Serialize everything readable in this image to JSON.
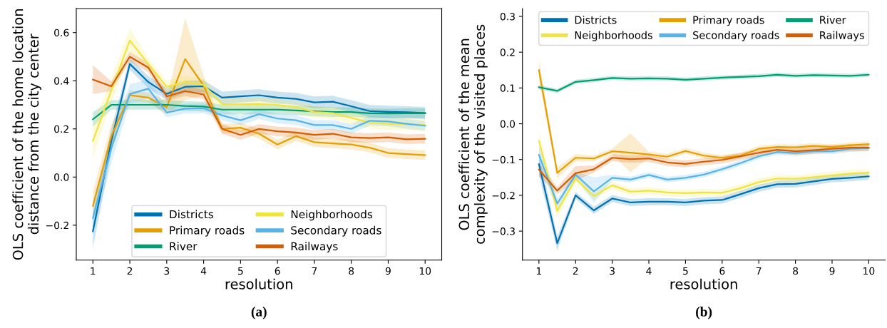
{
  "chart_data": [
    {
      "type": "line",
      "ylabel": "OLS coefficient of the home location\ndistance from the city center",
      "xlabel": "resolution",
      "annotations": [
        "(a)"
      ],
      "x": [
        1,
        1.5,
        2,
        2.5,
        3,
        3.5,
        4,
        4.5,
        5,
        5.5,
        6,
        6.5,
        7,
        7.5,
        8,
        8.5,
        9,
        9.5,
        10
      ],
      "xlim": [
        0.55,
        10.45
      ],
      "xticks": [
        1,
        2,
        3,
        4,
        5,
        6,
        7,
        8,
        9,
        10
      ],
      "ylim": [
        -0.345,
        0.7
      ],
      "yticks": [
        {
          "value": -0.2,
          "label": "−0.2"
        },
        {
          "value": 0,
          "label": "0.0"
        },
        {
          "value": 0.2,
          "label": "0.2"
        },
        {
          "value": 0.4,
          "label": "0.4"
        },
        {
          "value": 0.6,
          "label": "0.6"
        }
      ],
      "legend": "bottom",
      "grid": false,
      "marker": "none",
      "line_style": "solid",
      "series": [
        {
          "name": "Districts",
          "color": "#0072b2",
          "values": [
            -0.225,
            0.15,
            0.47,
            0.395,
            0.345,
            0.375,
            0.377,
            0.33,
            0.335,
            0.34,
            0.33,
            0.325,
            0.31,
            0.313,
            0.294,
            0.274,
            0.271,
            0.269,
            0.266
          ],
          "lower": [
            -0.295,
            0.1,
            0.445,
            0.37,
            0.32,
            0.35,
            0.352,
            0.305,
            0.31,
            0.315,
            0.305,
            0.3,
            0.285,
            0.288,
            0.269,
            0.249,
            0.246,
            0.244,
            0.241
          ],
          "upper": [
            -0.155,
            0.2,
            0.495,
            0.42,
            0.37,
            0.4,
            0.402,
            0.355,
            0.36,
            0.365,
            0.355,
            0.35,
            0.335,
            0.338,
            0.319,
            0.299,
            0.296,
            0.294,
            0.291
          ]
        },
        {
          "name": "Primary roads",
          "color": "#e69f00",
          "values": [
            -0.12,
            0.17,
            0.34,
            0.33,
            0.29,
            0.49,
            0.38,
            0.2,
            0.205,
            0.18,
            0.135,
            0.17,
            0.145,
            0.14,
            0.135,
            0.122,
            0.1,
            0.095,
            0.091
          ],
          "lower": [
            -0.18,
            0.12,
            0.32,
            0.31,
            0.26,
            0.32,
            0.34,
            0.18,
            0.185,
            0.16,
            0.115,
            0.15,
            0.125,
            0.12,
            0.115,
            0.102,
            0.08,
            0.075,
            0.071
          ],
          "upper": [
            -0.06,
            0.22,
            0.36,
            0.35,
            0.32,
            0.66,
            0.42,
            0.22,
            0.225,
            0.2,
            0.155,
            0.19,
            0.165,
            0.16,
            0.155,
            0.142,
            0.12,
            0.115,
            0.111
          ]
        },
        {
          "name": "River",
          "color": "#009e73",
          "values": [
            0.24,
            0.3,
            0.3,
            0.3,
            0.3,
            0.295,
            0.293,
            0.28,
            0.28,
            0.28,
            0.28,
            0.277,
            0.273,
            0.27,
            0.27,
            0.265,
            0.264,
            0.265,
            0.265
          ],
          "lower": [
            0.21,
            0.28,
            0.28,
            0.28,
            0.28,
            0.275,
            0.273,
            0.26,
            0.26,
            0.26,
            0.26,
            0.257,
            0.253,
            0.25,
            0.25,
            0.245,
            0.244,
            0.245,
            0.245
          ],
          "upper": [
            0.27,
            0.32,
            0.32,
            0.32,
            0.32,
            0.315,
            0.313,
            0.3,
            0.3,
            0.3,
            0.3,
            0.297,
            0.293,
            0.29,
            0.29,
            0.285,
            0.284,
            0.285,
            0.285
          ]
        },
        {
          "name": "Neighborhoods",
          "color": "#f0e442",
          "values": [
            0.15,
            0.36,
            0.567,
            0.47,
            0.375,
            0.395,
            0.383,
            0.303,
            0.303,
            0.304,
            0.3,
            0.29,
            0.27,
            0.266,
            0.246,
            0.226,
            0.221,
            0.219,
            0.216
          ],
          "lower": [
            0.08,
            0.31,
            0.517,
            0.445,
            0.35,
            0.37,
            0.358,
            0.278,
            0.278,
            0.279,
            0.275,
            0.265,
            0.245,
            0.241,
            0.221,
            0.201,
            0.196,
            0.194,
            0.191
          ],
          "upper": [
            0.22,
            0.41,
            0.617,
            0.495,
            0.4,
            0.42,
            0.408,
            0.328,
            0.328,
            0.329,
            0.325,
            0.315,
            0.295,
            0.291,
            0.271,
            0.251,
            0.246,
            0.244,
            0.241
          ]
        },
        {
          "name": "Secondary roads",
          "color": "#56b4e9",
          "values": [
            -0.17,
            0.12,
            0.345,
            0.367,
            0.268,
            0.284,
            0.286,
            0.256,
            0.236,
            0.261,
            0.243,
            0.236,
            0.216,
            0.216,
            0.2,
            0.234,
            0.231,
            0.221,
            0.213
          ],
          "lower": [
            -0.24,
            0.06,
            0.305,
            0.327,
            0.248,
            0.264,
            0.266,
            0.236,
            0.216,
            0.241,
            0.223,
            0.216,
            0.196,
            0.196,
            0.18,
            0.214,
            0.211,
            0.201,
            0.193
          ],
          "upper": [
            -0.1,
            0.18,
            0.385,
            0.407,
            0.288,
            0.304,
            0.306,
            0.276,
            0.256,
            0.281,
            0.263,
            0.256,
            0.236,
            0.236,
            0.22,
            0.254,
            0.251,
            0.241,
            0.233
          ]
        },
        {
          "name": "Railways",
          "color": "#d55e00",
          "values": [
            0.405,
            0.377,
            0.5,
            0.455,
            0.335,
            0.357,
            0.343,
            0.2,
            0.175,
            0.2,
            0.19,
            0.185,
            0.175,
            0.18,
            0.165,
            0.162,
            0.165,
            0.157,
            0.159
          ],
          "lower": [
            0.345,
            0.357,
            0.48,
            0.435,
            0.315,
            0.337,
            0.323,
            0.18,
            0.155,
            0.18,
            0.17,
            0.165,
            0.155,
            0.16,
            0.145,
            0.142,
            0.145,
            0.137,
            0.139
          ],
          "upper": [
            0.465,
            0.397,
            0.52,
            0.475,
            0.355,
            0.377,
            0.363,
            0.22,
            0.195,
            0.22,
            0.21,
            0.205,
            0.195,
            0.2,
            0.185,
            0.182,
            0.185,
            0.177,
            0.179
          ]
        }
      ]
    },
    {
      "type": "line",
      "ylabel": "OLS coefficient of the mean\ncomplexity of the visited places",
      "xlabel": "resolution",
      "annotations": [
        "(b)"
      ],
      "x": [
        1,
        1.5,
        2,
        2.5,
        3,
        3.5,
        4,
        4.5,
        5,
        5.5,
        6,
        6.5,
        7,
        7.5,
        8,
        8.5,
        9,
        9.5,
        10
      ],
      "xlim": [
        0.55,
        10.45
      ],
      "xticks": [
        1,
        2,
        3,
        4,
        5,
        6,
        7,
        8,
        9,
        10
      ],
      "ylim": [
        -0.381,
        0.322
      ],
      "yticks": [
        {
          "value": -0.3,
          "label": "−0.3"
        },
        {
          "value": -0.2,
          "label": "−0.2"
        },
        {
          "value": -0.1,
          "label": "−0.1"
        },
        {
          "value": 0,
          "label": "0.0"
        },
        {
          "value": 0.1,
          "label": "0.1"
        },
        {
          "value": 0.2,
          "label": "0.2"
        },
        {
          "value": 0.3,
          "label": "0.3"
        }
      ],
      "legend": "top",
      "grid": false,
      "marker": "none",
      "line_style": "solid",
      "series": [
        {
          "name": "Districts",
          "color": "#0072b2",
          "values": [
            -0.113,
            -0.334,
            -0.2,
            -0.242,
            -0.209,
            -0.22,
            -0.218,
            -0.218,
            -0.22,
            -0.215,
            -0.213,
            -0.197,
            -0.18,
            -0.169,
            -0.168,
            -0.161,
            -0.154,
            -0.151,
            -0.147
          ],
          "lower": [
            -0.143,
            -0.354,
            -0.21,
            -0.252,
            -0.219,
            -0.23,
            -0.228,
            -0.228,
            -0.23,
            -0.225,
            -0.223,
            -0.207,
            -0.19,
            -0.179,
            -0.178,
            -0.171,
            -0.164,
            -0.161,
            -0.157
          ],
          "upper": [
            -0.083,
            -0.314,
            -0.19,
            -0.232,
            -0.199,
            -0.21,
            -0.208,
            -0.208,
            -0.21,
            -0.205,
            -0.203,
            -0.187,
            -0.17,
            -0.159,
            -0.158,
            -0.151,
            -0.144,
            -0.141,
            -0.137
          ]
        },
        {
          "name": "Neighborhoods",
          "color": "#f0e442",
          "values": [
            -0.048,
            -0.244,
            -0.154,
            -0.202,
            -0.172,
            -0.19,
            -0.187,
            -0.192,
            -0.194,
            -0.192,
            -0.193,
            -0.18,
            -0.163,
            -0.153,
            -0.154,
            -0.149,
            -0.144,
            -0.139,
            -0.136
          ],
          "lower": [
            -0.073,
            -0.264,
            -0.164,
            -0.212,
            -0.182,
            -0.2,
            -0.197,
            -0.202,
            -0.204,
            -0.202,
            -0.203,
            -0.19,
            -0.173,
            -0.163,
            -0.164,
            -0.159,
            -0.154,
            -0.149,
            -0.146
          ],
          "upper": [
            -0.023,
            -0.224,
            -0.144,
            -0.192,
            -0.162,
            -0.18,
            -0.177,
            -0.182,
            -0.184,
            -0.182,
            -0.183,
            -0.17,
            -0.153,
            -0.143,
            -0.144,
            -0.139,
            -0.134,
            -0.129,
            -0.126
          ]
        },
        {
          "name": "Primary roads",
          "color": "#e69f00",
          "values": [
            0.15,
            -0.137,
            -0.095,
            -0.097,
            -0.077,
            -0.081,
            -0.086,
            -0.092,
            -0.076,
            -0.089,
            -0.095,
            -0.089,
            -0.07,
            -0.065,
            -0.066,
            -0.062,
            -0.065,
            -0.06,
            -0.057
          ],
          "lower": [
            0.12,
            -0.152,
            -0.105,
            -0.105,
            -0.085,
            -0.136,
            -0.094,
            -0.1,
            -0.084,
            -0.097,
            -0.103,
            -0.097,
            -0.078,
            -0.073,
            -0.074,
            -0.07,
            -0.073,
            -0.068,
            -0.065
          ],
          "upper": [
            0.18,
            -0.122,
            -0.085,
            -0.089,
            -0.069,
            -0.027,
            -0.078,
            -0.084,
            -0.068,
            -0.081,
            -0.087,
            -0.081,
            -0.062,
            -0.057,
            -0.058,
            -0.054,
            -0.057,
            -0.052,
            -0.049
          ]
        },
        {
          "name": "Secondary roads",
          "color": "#56b4e9",
          "values": [
            -0.087,
            -0.223,
            -0.142,
            -0.189,
            -0.151,
            -0.156,
            -0.143,
            -0.156,
            -0.151,
            -0.142,
            -0.127,
            -0.11,
            -0.091,
            -0.079,
            -0.082,
            -0.077,
            -0.077,
            -0.07,
            -0.068
          ],
          "lower": [
            -0.112,
            -0.238,
            -0.15,
            -0.22,
            -0.159,
            -0.164,
            -0.151,
            -0.164,
            -0.159,
            -0.15,
            -0.135,
            -0.118,
            -0.099,
            -0.087,
            -0.09,
            -0.085,
            -0.085,
            -0.078,
            -0.076
          ],
          "upper": [
            -0.062,
            -0.208,
            -0.134,
            -0.15,
            -0.143,
            -0.148,
            -0.135,
            -0.148,
            -0.143,
            -0.134,
            -0.119,
            -0.102,
            -0.083,
            -0.071,
            -0.074,
            -0.069,
            -0.069,
            -0.062,
            -0.06
          ]
        },
        {
          "name": "River",
          "color": "#009e73",
          "values": [
            0.102,
            0.092,
            0.117,
            0.122,
            0.128,
            0.126,
            0.127,
            0.126,
            0.123,
            0.126,
            0.129,
            0.131,
            0.133,
            0.137,
            0.134,
            0.136,
            0.135,
            0.134,
            0.137
          ],
          "lower": [
            0.096,
            0.086,
            0.111,
            0.116,
            0.122,
            0.12,
            0.121,
            0.12,
            0.117,
            0.12,
            0.123,
            0.125,
            0.127,
            0.131,
            0.128,
            0.13,
            0.129,
            0.128,
            0.131
          ],
          "upper": [
            0.108,
            0.098,
            0.123,
            0.128,
            0.134,
            0.132,
            0.133,
            0.132,
            0.129,
            0.132,
            0.135,
            0.137,
            0.139,
            0.143,
            0.14,
            0.142,
            0.141,
            0.14,
            0.143
          ]
        },
        {
          "name": "Railways",
          "color": "#d55e00",
          "values": [
            -0.128,
            -0.187,
            -0.138,
            -0.127,
            -0.095,
            -0.099,
            -0.097,
            -0.108,
            -0.112,
            -0.106,
            -0.101,
            -0.091,
            -0.081,
            -0.073,
            -0.077,
            -0.074,
            -0.07,
            -0.067,
            -0.067
          ],
          "lower": [
            -0.148,
            -0.197,
            -0.158,
            -0.137,
            -0.105,
            -0.109,
            -0.107,
            -0.118,
            -0.122,
            -0.116,
            -0.111,
            -0.101,
            -0.091,
            -0.083,
            -0.087,
            -0.084,
            -0.08,
            -0.077,
            -0.077
          ],
          "upper": [
            -0.108,
            -0.177,
            -0.118,
            -0.117,
            -0.085,
            -0.089,
            -0.087,
            -0.098,
            -0.102,
            -0.096,
            -0.091,
            -0.081,
            -0.071,
            -0.063,
            -0.067,
            -0.064,
            -0.06,
            -0.057,
            -0.057
          ]
        }
      ]
    }
  ]
}
